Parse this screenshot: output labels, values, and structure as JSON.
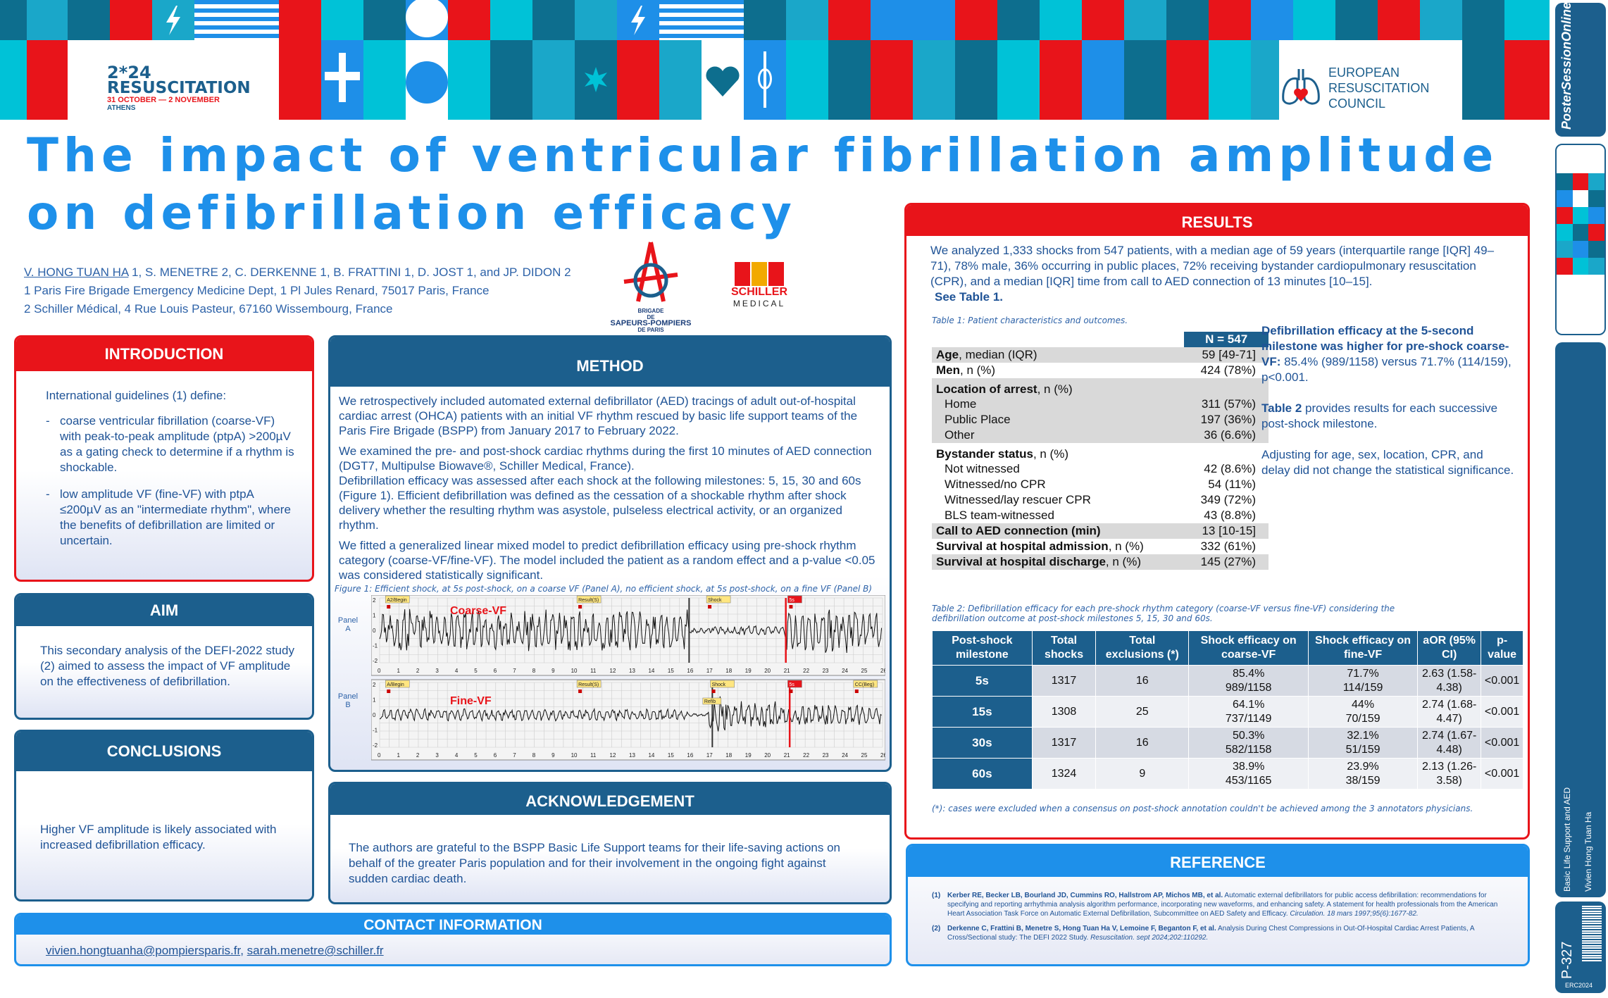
{
  "header": {
    "conference_year": "2*24",
    "conference_name": "RESUSCITATION",
    "conference_dates": "31 OCTOBER — 2 NOVEMBER",
    "conference_city": "ATHENS",
    "erc_line1": "EUROPEAN",
    "erc_line2": "RESUSCITATION",
    "erc_line3": "COUNCIL",
    "bspp_logo_text": [
      "BRIGADE",
      "DE",
      "SAPEURS-POMPIERS",
      "DE PARIS"
    ],
    "schiller_logo_text": [
      "SCHILLER",
      "MEDICAL"
    ]
  },
  "title_line1": "The impact of ventricular fibrillation amplitude",
  "title_line2": "on defibrillation efficacy",
  "authors": {
    "first": "V. HONG TUAN HA",
    "rest": " 1, S. MENETRE 2, C. DERKENNE 1, B. FRATTINI 1, D. JOST 1, and JP. DIDON 2",
    "aff1": "1 Paris Fire Brigade Emergency Medicine Dept, 1 Pl Jules Renard, 75017 Paris, France",
    "aff2": "2 Schiller Médical, 4 Rue Louis Pasteur, 67160 Wissembourg, France"
  },
  "introduction": {
    "title": "INTRODUCTION",
    "p1": "International guidelines (1) define:",
    "b1": "coarse ventricular fibrillation (coarse-VF) with peak-to-peak amplitude (ptpA) >200µV as a gating check to determine if a rhythm is shockable.",
    "b2": "low amplitude VF (fine-VF) with ptpA ≤200µV as an \"intermediate rhythm\", where the benefits of defibrillation are limited or uncertain."
  },
  "aim": {
    "title": "AIM",
    "text": "This secondary analysis of the DEFI-2022 study (2) aimed to assess the impact of VF amplitude on the effectiveness of defibrillation."
  },
  "conclusions": {
    "title": "CONCLUSIONS",
    "text": "Higher VF amplitude is likely associated with increased defibrillation efficacy."
  },
  "method": {
    "title": "METHOD",
    "p1": "We retrospectively included automated external defibrillator (AED) tracings of adult out-of-hospital cardiac arrest (OHCA) patients with an initial VF rhythm rescued by basic life support teams of the Paris Fire Brigade (BSPP) from January 2017 to February 2022.",
    "p2": "We examined the pre- and post-shock cardiac rhythms during the first 10 minutes of AED connection (DGT7, Multipulse Biowave®, Schiller Medical, France).",
    "p3": "Defibrillation efficacy was assessed after each shock at the following milestones: 5, 15, 30 and 60s (Figure 1). Efficient defibrillation was defined as the cessation of a shockable rhythm after shock delivery whether the resulting rhythm was asystole, pulseless electrical activity, or an organized rhythm.",
    "p4": "We fitted a generalized linear mixed model to predict defibrillation efficacy using pre-shock rhythm category (coarse-VF/fine-VF). The model included the patient as a random effect and a p-value <0.05 was considered statistically significant.",
    "fig_caption": "Figure 1: Efficient shock, at 5s post-shock, on a coarse VF (Panel A), no efficient shock, at 5s post-shock, on a fine VF (Panel B)",
    "panel_a": "Panel A",
    "panel_b": "Panel B",
    "coarse_label": "Coarse-VF",
    "fine_label": "Fine-VF",
    "markers_a": [
      "A2/Begin",
      "Result(S)",
      "Shock",
      "5s"
    ],
    "markers_b": [
      "A/Begin",
      "Result(S)",
      "Shock",
      "5s",
      "CC(Beg)"
    ],
    "marker_refib": "Refib",
    "axis_ticks": [
      "0",
      "1",
      "2",
      "3",
      "4",
      "5",
      "6",
      "7",
      "8",
      "9",
      "10",
      "11",
      "12",
      "13",
      "14",
      "15",
      "16",
      "17",
      "18",
      "19",
      "20",
      "21",
      "22",
      "23",
      "24",
      "25",
      "26"
    ],
    "y_ticks": [
      "2",
      "1",
      "0",
      "-1",
      "-2"
    ]
  },
  "acknowledgement": {
    "title": "ACKNOWLEDGEMENT",
    "text": "The authors are grateful to the BSPP Basic Life Support teams for their life-saving actions on behalf of the greater Paris population and for their involvement in the ongoing fight against sudden cardiac death."
  },
  "contact": {
    "title": "CONTACT INFORMATION",
    "email1": "vivien.hongtuanha@pompiersparis.fr",
    "sep": ", ",
    "email2": "sarah.menetre@schiller.fr"
  },
  "results": {
    "title": "RESULTS",
    "intro": "We analyzed 1,333 shocks from 547 patients, with a median age of 59 years (interquartile range [IQR] 49–71), 78% male, 36% occurring in public places, 72% receiving bystander cardiopulmonary resuscitation (CPR), and a median [IQR] time from call to AED connection of 13 minutes [10–15].",
    "see": "See Table 1.",
    "t1_caption": "Table 1: Patient characteristics and outcomes.",
    "t1_header": "N = 547",
    "t1_rows": [
      [
        "Age, median (IQR)",
        "59 [49-71]"
      ],
      [
        "Men, n (%)",
        "424 (78%)"
      ],
      [
        "Location of arrest, n (%)",
        ""
      ],
      [
        "Home",
        "311 (57%)"
      ],
      [
        "Public Place",
        "197 (36%)"
      ],
      [
        "Other",
        "36 (6.6%)"
      ],
      [
        "Bystander status, n (%)",
        ""
      ],
      [
        "Not witnessed",
        "42 (8.6%)"
      ],
      [
        "Witnessed/no CPR",
        "54 (11%)"
      ],
      [
        "Witnessed/lay rescuer CPR",
        "349 (72%)"
      ],
      [
        "BLS team-witnessed",
        "43 (8.8%)"
      ],
      [
        "Call to AED connection (min)",
        "13 [10-15]"
      ],
      [
        "Survival at hospital admission, n (%)",
        "332 (61%)"
      ],
      [
        "Survival at hospital discharge, n (%)",
        "145 (27%)"
      ]
    ],
    "side1": "Defibrillation efficacy at the 5-second milestone was higher for pre-shock coarse-VF: 85.4% (989/1158) versus 71.7% (114/159), p<0.001.",
    "side2": "Table 2 provides results for each successive post-shock milestone.",
    "side3": "Adjusting for age, sex, location, CPR, and delay did not change the statistical significance.",
    "t2_caption": "Table 2: Defibrillation efficacy for each pre-shock rhythm category (coarse-VF versus fine-VF) considering the defibrillation outcome at post-shock milestones 5, 15, 30 and 60s.",
    "t2_headers": [
      "Post-shock milestone",
      "Total shocks",
      "Total exclusions (*)",
      "Shock efficacy on coarse-VF",
      "Shock efficacy on fine-VF",
      "aOR (95% CI)",
      "p-value"
    ],
    "t2_rows": [
      [
        "5s",
        "1317",
        "16",
        "85.4%",
        "989/1158",
        "71.7%",
        "114/159",
        "2.63 (1.58-4.38)",
        "<0.001"
      ],
      [
        "15s",
        "1308",
        "25",
        "64.1%",
        "737/1149",
        "44%",
        "70/159",
        "2.74 (1.68-4.47)",
        "<0.001"
      ],
      [
        "30s",
        "1317",
        "16",
        "50.3%",
        "582/1158",
        "32.1%",
        "51/159",
        "2.74 (1.67-4.48)",
        "<0.001"
      ],
      [
        "60s",
        "1324",
        "9",
        "38.9%",
        "453/1165",
        "23.9%",
        "38/159",
        "2.13 (1.26-3.58)",
        "<0.001"
      ]
    ],
    "t2_note": "(*): cases were excluded when a consensus on post-shock annotation couldn't be achieved among the 3 annotators physicians."
  },
  "reference": {
    "title": "REFERENCE",
    "r1_num": "(1)",
    "r1_authors": "Kerber RE, Becker LB, Bourland JD, Cummins RO, Hallstrom AP, Michos MB, et al.",
    "r1_text": " Automatic external defibrillators for public access defibrillation: recommendations for specifying and reporting arrhythmia analysis algorithm performance, incorporating new waveforms, and enhancing safety. A statement for health professionals from the American Heart Association Task Force on Automatic External Defibrillation, Subcommittee on AED Safety and Efficacy.",
    "r1_journal": " Circulation. 18 mars 1997;95(6):1677-82.",
    "r2_num": "(2)",
    "r2_authors": "Derkenne C, Frattini B, Menetre S, Hong Tuan Ha V, Lemoine F, Beganton F, et al.",
    "r2_text": " Analysis During Chest Compressions in Out-Of-Hospital Cardiac Arrest Patients, A Cross/Sectional study: The DEFI 2022 Study.",
    "r2_journal": " Resuscitation. sept 2024;202:110292."
  },
  "sidebar": {
    "brand": "PosterSessionOnline",
    "topic": "Basic Life Support and AED",
    "author": "Vivien Hong Tuan Ha",
    "poster_id": "P-327",
    "erc": "ERC2024"
  },
  "colors": {
    "blue_dark": "#1c5f8d",
    "red": "#e8141a",
    "title_blue": "#1e90ea",
    "cyan": "#00c2d7"
  }
}
